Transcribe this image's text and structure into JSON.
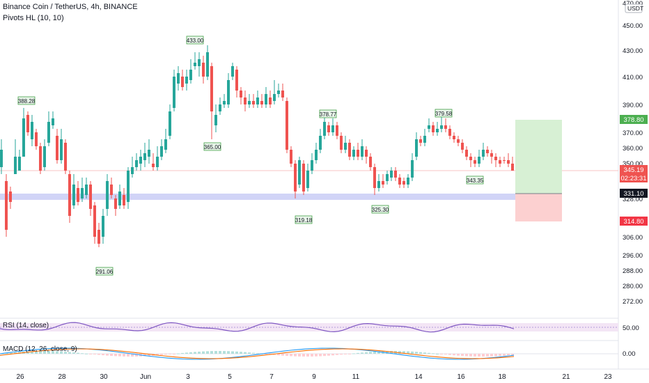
{
  "header": {
    "title": "Binance Coin / TetherUS, 4h, BINANCE",
    "indicator": "Pivots HL (10, 10)"
  },
  "axis": {
    "currency": "USDT",
    "price_ticks": [
      "470.00",
      "450.00",
      "430.00",
      "410.00",
      "390.00",
      "370.00",
      "360.00",
      "350.00",
      "340.00",
      "328.00",
      "306.00",
      "296.00",
      "288.00",
      "280.00",
      "272.00"
    ],
    "date_ticks": [
      "26",
      "28",
      "30",
      "Jun",
      "3",
      "5",
      "7",
      "9",
      "11",
      "14",
      "16",
      "18",
      "21",
      "23"
    ]
  },
  "price_labels": {
    "current_price": "345.19",
    "countdown": "02:23:31",
    "target": "378.80",
    "entry": "331.10",
    "stop": "314.80"
  },
  "pivots": [
    "388.28",
    "291.06",
    "433.00",
    "365.00",
    "319.18",
    "378.77",
    "325.30",
    "379.58",
    "343.35"
  ],
  "rsi": {
    "label": "RSI (14, close)",
    "level": "50.00"
  },
  "macd": {
    "label": "MACD (12, 26, close, 9)",
    "level": "0.00"
  },
  "colors": {
    "up": "#26a69a",
    "down": "#ef5350",
    "rsi_line": "#7e57c2",
    "macd_line": "#2196f3",
    "signal_line": "#ff6d00",
    "target_zone": "#d7f0d4",
    "stop_zone": "#fcd0d0",
    "entry_band": "#d1d4f7"
  }
}
